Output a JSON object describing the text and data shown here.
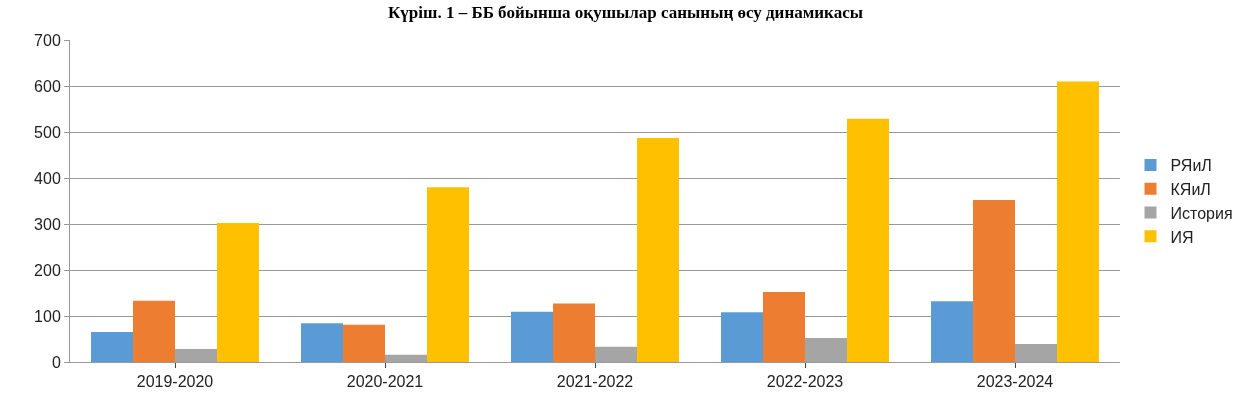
{
  "chart_data": {
    "type": "bar",
    "title": "Күріш. 1 – ББ бойынша оқушылар санының өсу динамикасы",
    "categories": [
      "2019-2020",
      "2020-2021",
      "2021-2022",
      "2022-2023",
      "2023-2024"
    ],
    "series": [
      {
        "name": "РЯиЛ",
        "color": "#5b9bd5",
        "values": [
          65,
          84,
          109,
          108,
          132
        ]
      },
      {
        "name": "КЯиЛ",
        "color": "#ed7d31",
        "values": [
          133,
          81,
          127,
          152,
          352
        ]
      },
      {
        "name": "История",
        "color": "#a5a5a5",
        "values": [
          28,
          16,
          33,
          52,
          39
        ]
      },
      {
        "name": "ИЯ",
        "color": "#ffc000",
        "values": [
          302,
          380,
          487,
          529,
          610
        ]
      }
    ],
    "ylim": [
      0,
      700
    ],
    "yticks": [
      0,
      100,
      200,
      300,
      400,
      500,
      600,
      700
    ],
    "grid": "y",
    "legend": "right"
  }
}
